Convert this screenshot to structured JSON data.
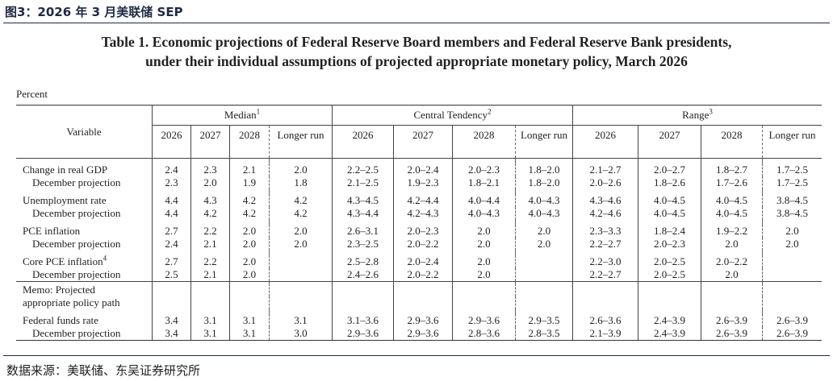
{
  "figure_label": "图3：2026 年 3 月美联储 SEP",
  "table_title_line1": "Table 1. Economic projections of Federal Reserve Board members and Federal Reserve Bank presidents,",
  "table_title_line2": "under their individual assumptions of projected appropriate monetary policy, March 2026",
  "unit_label": "Percent",
  "header": {
    "variable": "Variable",
    "groups": [
      {
        "label": "Median",
        "sup": "1"
      },
      {
        "label": "Central Tendency",
        "sup": "2"
      },
      {
        "label": "Range",
        "sup": "3"
      }
    ],
    "years": [
      "2026",
      "2027",
      "2028"
    ],
    "longer_run": "Longer run"
  },
  "rows": [
    {
      "label": "Change in real GDP",
      "values": [
        "2.4",
        "2.3",
        "2.1",
        "2.0",
        "2.2–2.5",
        "2.0–2.4",
        "2.0–2.3",
        "1.8–2.0",
        "2.1–2.7",
        "2.0–2.7",
        "1.8–2.7",
        "1.7–2.5"
      ]
    },
    {
      "label": "December projection",
      "sub": true,
      "values": [
        "2.3",
        "2.0",
        "1.9",
        "1.8",
        "2.1–2.5",
        "1.9–2.3",
        "1.8–2.1",
        "1.8–2.0",
        "2.0–2.6",
        "1.8–2.6",
        "1.7–2.6",
        "1.7–2.5"
      ]
    },
    {
      "label": "Unemployment rate",
      "values": [
        "4.4",
        "4.3",
        "4.2",
        "4.2",
        "4.3–4.5",
        "4.2–4.4",
        "4.0–4.4",
        "4.0–4.3",
        "4.3–4.6",
        "4.0–4.5",
        "4.0–4.5",
        "3.8–4.5"
      ]
    },
    {
      "label": "December projection",
      "sub": true,
      "values": [
        "4.4",
        "4.2",
        "4.2",
        "4.2",
        "4.3–4.4",
        "4.2–4.3",
        "4.0–4.3",
        "4.0–4.3",
        "4.2–4.6",
        "4.0–4.5",
        "4.0–4.5",
        "3.8–4.5"
      ]
    },
    {
      "label": "PCE inflation",
      "values": [
        "2.7",
        "2.2",
        "2.0",
        "2.0",
        "2.6–3.1",
        "2.0–2.3",
        "2.0",
        "2.0",
        "2.3–3.3",
        "1.8–2.4",
        "1.9–2.2",
        "2.0"
      ]
    },
    {
      "label": "December projection",
      "sub": true,
      "values": [
        "2.4",
        "2.1",
        "2.0",
        "2.0",
        "2.3–2.5",
        "2.0–2.2",
        "2.0",
        "2.0",
        "2.2–2.7",
        "2.0–2.3",
        "2.0",
        "2.0"
      ]
    },
    {
      "label": "Core PCE inflation",
      "sup": "4",
      "values": [
        "2.7",
        "2.2",
        "2.0",
        "",
        "2.5–2.8",
        "2.0–2.4",
        "2.0",
        "",
        "2.2–3.0",
        "2.0–2.5",
        "2.0–2.2",
        ""
      ]
    },
    {
      "label": "December projection",
      "sub": true,
      "values": [
        "2.5",
        "2.1",
        "2.0",
        "",
        "2.4–2.6",
        "2.0–2.2",
        "2.0",
        "",
        "2.2–2.7",
        "2.0–2.5",
        "2.0",
        ""
      ]
    },
    {
      "label": "Memo: Projected",
      "section": true,
      "values": [
        "",
        "",
        "",
        "",
        "",
        "",
        "",
        "",
        "",
        "",
        "",
        ""
      ]
    },
    {
      "label": "appropriate policy path",
      "values": [
        "",
        "",
        "",
        "",
        "",
        "",
        "",
        "",
        "",
        "",
        "",
        ""
      ]
    },
    {
      "label": "Federal funds rate",
      "values": [
        "3.4",
        "3.1",
        "3.1",
        "3.1",
        "3.1–3.6",
        "2.9–3.6",
        "2.9–3.6",
        "2.9–3.5",
        "2.6–3.6",
        "2.4–3.9",
        "2.6–3.9",
        "2.6–3.9"
      ]
    },
    {
      "label": "December projection",
      "sub": true,
      "values": [
        "3.4",
        "3.1",
        "3.1",
        "3.0",
        "2.9–3.6",
        "2.9–3.6",
        "2.8–3.6",
        "2.8–3.5",
        "2.1–3.9",
        "2.4–3.9",
        "2.6–3.9",
        "2.6–3.9"
      ]
    }
  ],
  "source": "数据来源：美联储、东吴证券研究所"
}
